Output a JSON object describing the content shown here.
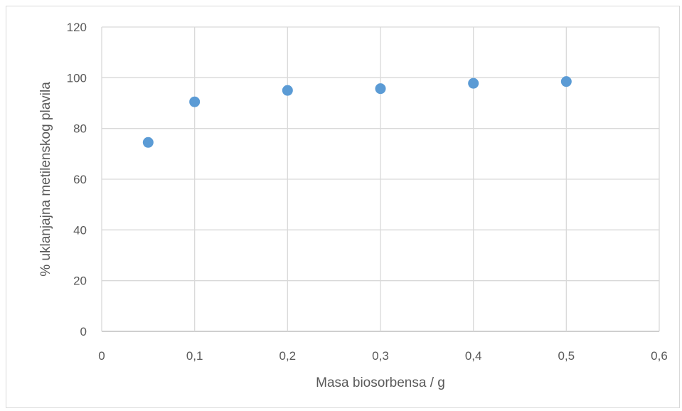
{
  "chart_data": {
    "type": "scatter",
    "title": "",
    "xlabel": "Masa biosorbensa / g",
    "ylabel": "% uklanjajna metilenskog plavila",
    "xlim": [
      0,
      0.6
    ],
    "ylim": [
      0,
      120
    ],
    "x_ticks": [
      "0",
      "0,1",
      "0,2",
      "0,3",
      "0,4",
      "0,5",
      "0,6"
    ],
    "y_ticks": [
      "0",
      "20",
      "40",
      "60",
      "80",
      "100",
      "120"
    ],
    "grid": true,
    "marker_color": "#5b9bd5",
    "series": [
      {
        "points": [
          {
            "x": 0.05,
            "y": 74.5
          },
          {
            "x": 0.1,
            "y": 90.5
          },
          {
            "x": 0.2,
            "y": 95
          },
          {
            "x": 0.3,
            "y": 95.7
          },
          {
            "x": 0.4,
            "y": 97.8
          },
          {
            "x": 0.5,
            "y": 98.5
          }
        ]
      }
    ]
  }
}
